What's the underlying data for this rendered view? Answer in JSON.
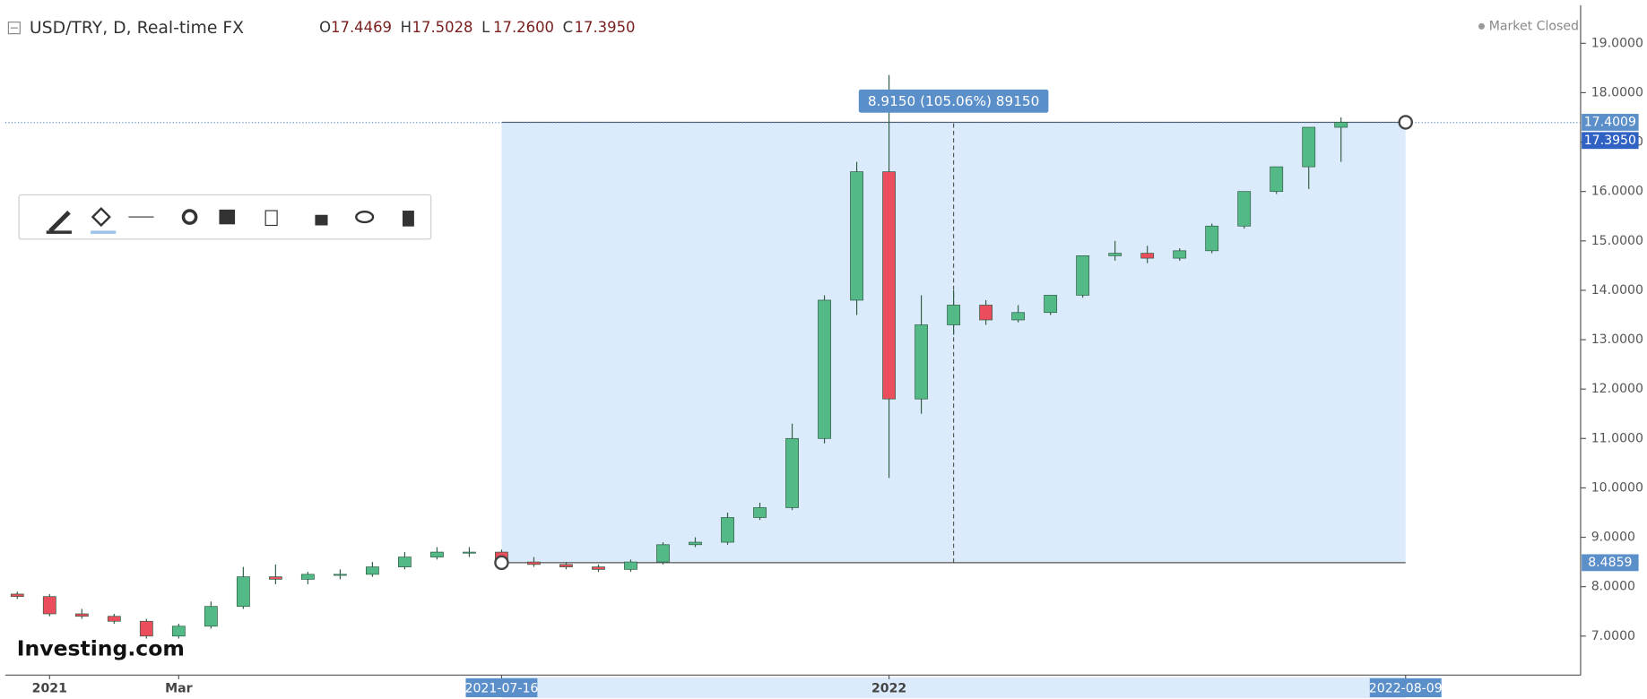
{
  "chart_data": {
    "type": "candlestick",
    "header": {
      "symbol": "USD/TRY, D, Real-time FX",
      "ohlc": [
        {
          "key": "O",
          "value": "17.4469"
        },
        {
          "key": "H",
          "value": "17.5028"
        },
        {
          "key": "L",
          "value": "17.2600"
        },
        {
          "key": "C",
          "value": "17.3950"
        }
      ],
      "status": "Market Closed"
    },
    "logo": "Investing.com",
    "categories": [
      null,
      "2021",
      null,
      null,
      null,
      "Mar",
      null,
      null,
      null,
      null,
      null,
      null,
      null,
      null,
      null,
      "2021-07-16",
      null,
      null,
      null,
      null,
      null,
      null,
      null,
      null,
      null,
      null,
      null,
      "2022",
      null,
      null,
      null,
      null,
      null,
      null,
      null,
      null,
      null,
      null,
      null,
      null,
      null,
      null,
      null,
      "2022-08-09"
    ],
    "open": [
      7.85,
      7.8,
      7.45,
      7.4,
      7.3,
      7.0,
      7.2,
      7.6,
      8.2,
      8.15,
      8.25,
      8.25,
      8.4,
      8.6,
      8.7,
      8.7,
      8.5,
      8.45,
      8.4,
      8.35,
      8.5,
      8.85,
      8.9,
      9.4,
      9.6,
      11.0,
      13.8,
      16.4,
      11.8,
      13.3,
      13.7,
      13.4,
      13.55,
      13.9,
      14.7,
      14.75,
      14.65,
      14.8,
      15.3,
      16.0,
      16.5,
      17.3,
      null,
      null
    ],
    "high": [
      7.9,
      7.85,
      7.55,
      7.45,
      7.35,
      7.25,
      7.7,
      8.4,
      8.45,
      8.3,
      8.35,
      8.5,
      8.7,
      8.8,
      8.8,
      8.75,
      8.6,
      8.5,
      8.45,
      8.55,
      8.9,
      9.0,
      9.5,
      9.7,
      11.3,
      13.9,
      16.6,
      18.36,
      13.9,
      14.0,
      13.8,
      13.7,
      13.9,
      14.7,
      15.0,
      14.9,
      14.85,
      15.35,
      16.0,
      16.5,
      17.3,
      17.5,
      null,
      null
    ],
    "low": [
      7.75,
      7.4,
      7.35,
      7.25,
      6.95,
      6.95,
      7.15,
      7.55,
      8.05,
      8.05,
      8.15,
      8.2,
      8.35,
      8.55,
      8.6,
      8.45,
      8.4,
      8.35,
      8.3,
      8.3,
      8.45,
      8.8,
      8.85,
      9.35,
      9.55,
      10.9,
      13.5,
      10.2,
      11.5,
      13.1,
      13.3,
      13.35,
      13.5,
      13.85,
      14.6,
      14.55,
      14.6,
      14.75,
      15.25,
      15.95,
      16.05,
      16.6,
      null,
      null
    ],
    "close": [
      7.8,
      7.45,
      7.4,
      7.3,
      7.0,
      7.2,
      7.6,
      8.2,
      8.15,
      8.25,
      8.25,
      8.4,
      8.6,
      8.7,
      8.7,
      8.5,
      8.45,
      8.4,
      8.35,
      8.5,
      8.85,
      8.9,
      9.4,
      9.6,
      11.0,
      13.8,
      16.4,
      11.8,
      13.3,
      13.7,
      13.4,
      13.55,
      13.9,
      14.7,
      14.75,
      14.65,
      14.8,
      15.3,
      16.0,
      16.5,
      17.3,
      17.4,
      null,
      null
    ],
    "up_color": "#53b987",
    "down_color": "#eb4d5c",
    "ylim": [
      6.21,
      19.77
    ],
    "yticks": [
      {
        "value": 7,
        "label": "7.0000"
      },
      {
        "value": 8,
        "label": "8.0000"
      },
      {
        "value": 9,
        "label": "9.0000"
      },
      {
        "value": 10,
        "label": "10.0000"
      },
      {
        "value": 11,
        "label": "11.0000"
      },
      {
        "value": 12,
        "label": "12.0000"
      },
      {
        "value": 13,
        "label": "13.0000"
      },
      {
        "value": 14,
        "label": "14.0000"
      },
      {
        "value": 15,
        "label": "15.0000"
      },
      {
        "value": 16,
        "label": "16.0000"
      },
      {
        "value": 17,
        "label": "17.0000"
      },
      {
        "value": 18,
        "label": "18.0000"
      },
      {
        "value": 19,
        "label": "19.0000"
      }
    ],
    "last_price": {
      "value": 17.395,
      "label": "17.3950"
    },
    "measure": {
      "from": 8.4859,
      "to": 17.4009,
      "label": "8.9150 (105.06%) 89150",
      "color": "#dcebfb"
    }
  }
}
